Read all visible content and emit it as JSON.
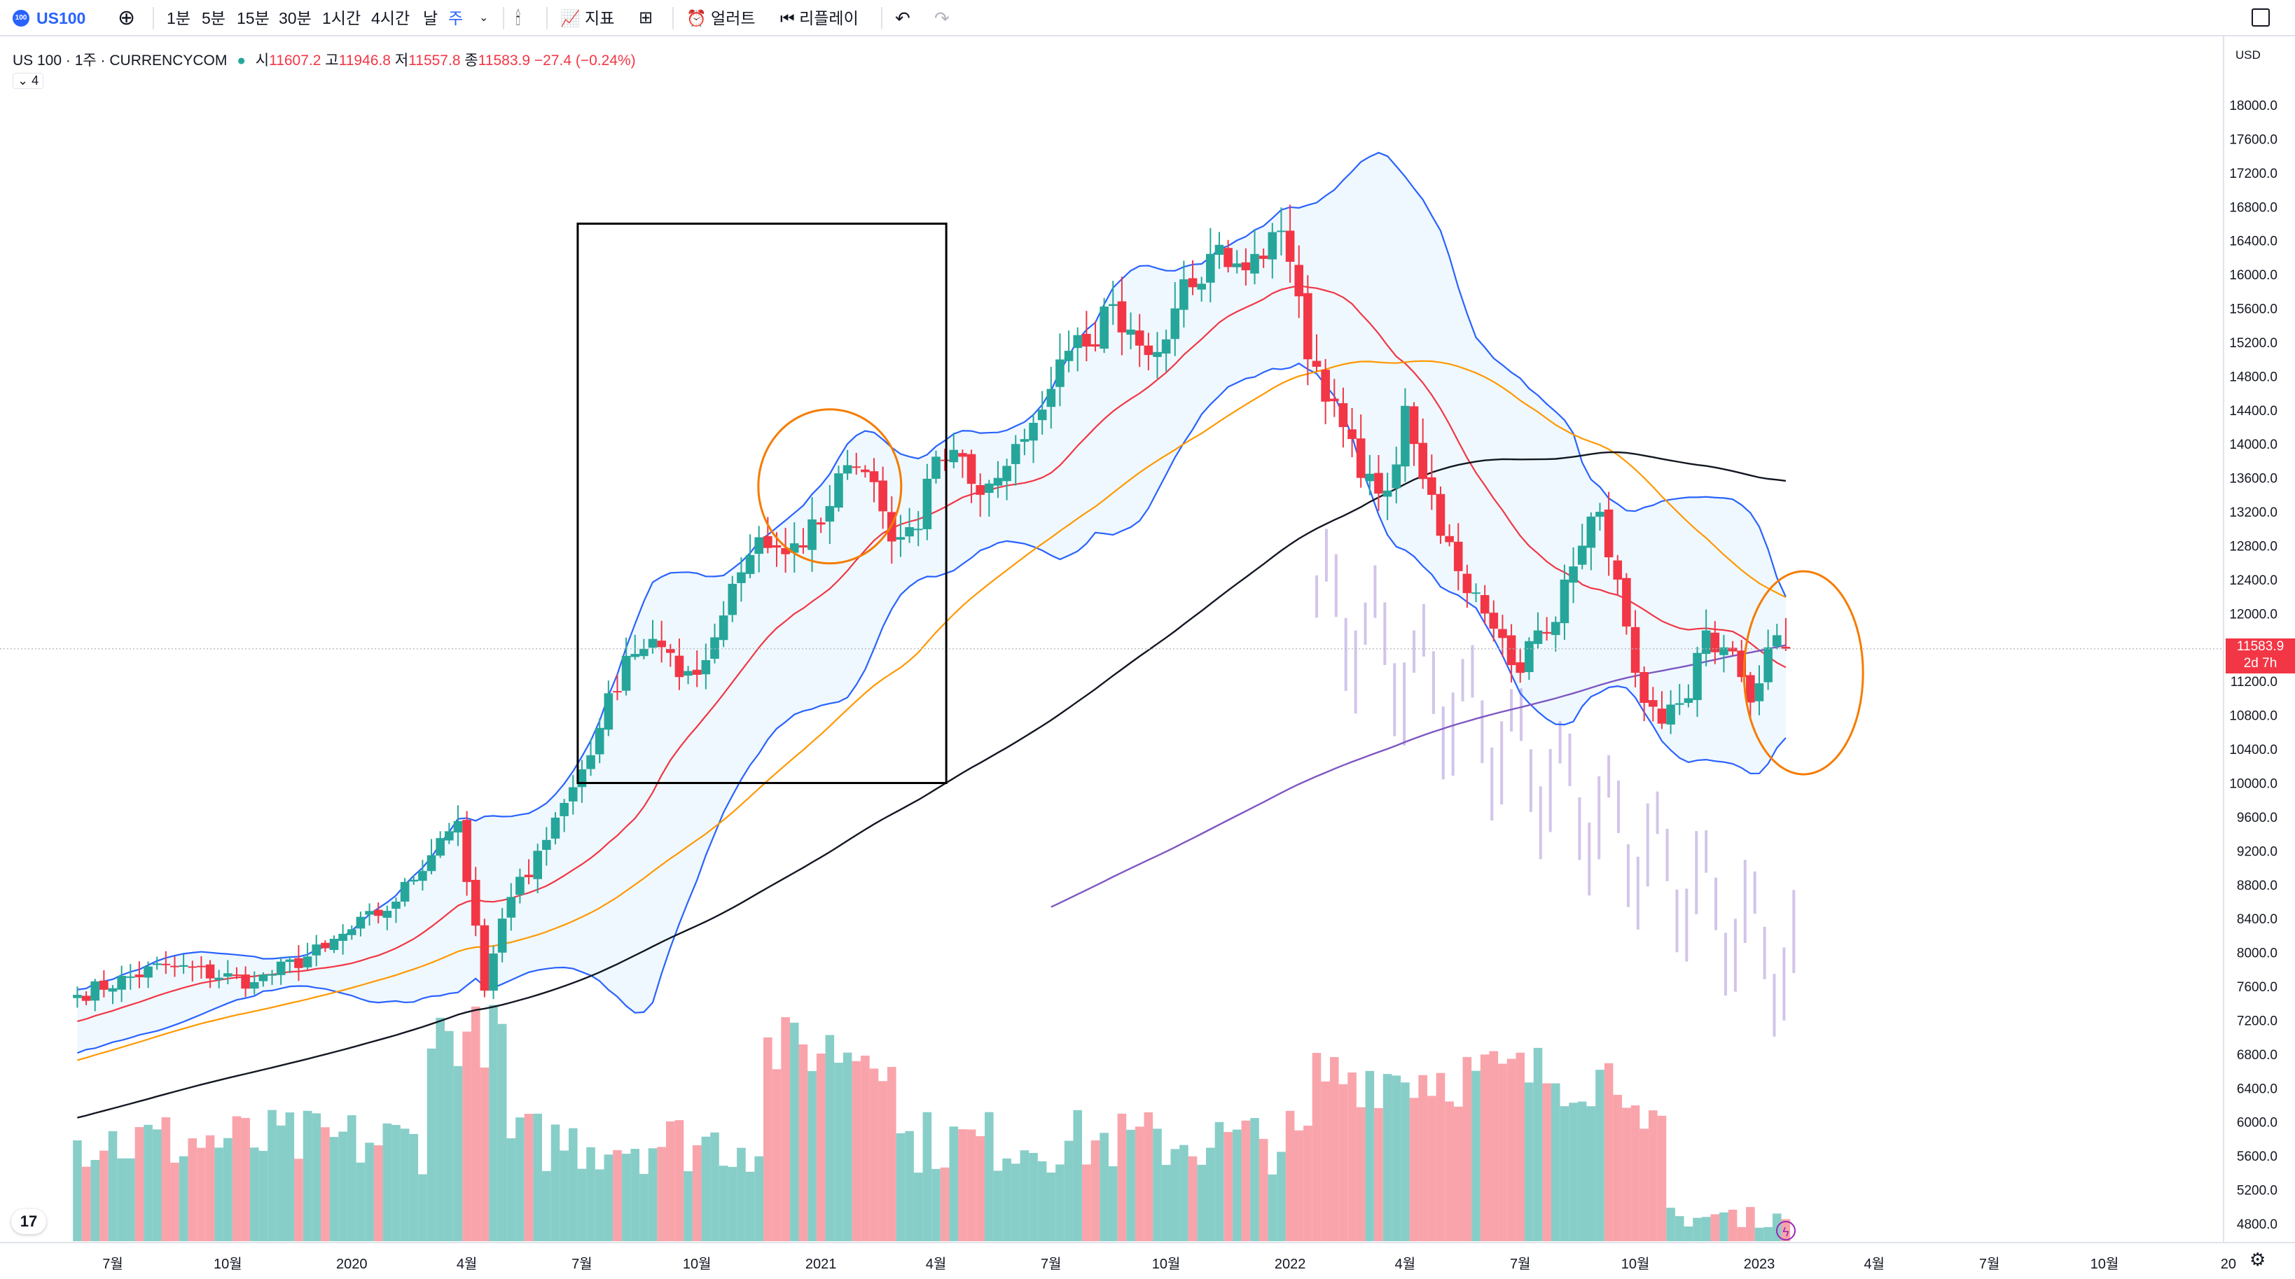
{
  "toolbar": {
    "symbol": "US100",
    "badge": "100",
    "intervals": [
      "1분",
      "5분",
      "15분",
      "30분",
      "1시간",
      "4시간",
      "날",
      "주"
    ],
    "active_interval": "주",
    "indicators_label": "지표",
    "alert_label": "얼러트",
    "replay_label": "리플레이"
  },
  "legend": {
    "title": "US 100 · 1주 · CURRENCYCOM",
    "open_key": "시",
    "open": "11607.2",
    "high_key": "고",
    "high": "11946.8",
    "low_key": "저",
    "low": "11557.8",
    "close_key": "종",
    "close": "11583.9",
    "change": "−27.4 (−0.24%)",
    "collapsed_count": "4"
  },
  "price_axis": {
    "currency": "USD",
    "ticks": [
      "18000.0",
      "17600.0",
      "17200.0",
      "16800.0",
      "16400.0",
      "16000.0",
      "15600.0",
      "15200.0",
      "14800.0",
      "14400.0",
      "14000.0",
      "13600.0",
      "13200.0",
      "12800.0",
      "12400.0",
      "12000.0",
      "11200.0",
      "10800.0",
      "10400.0",
      "10000.0",
      "9600.0",
      "9200.0",
      "8800.0",
      "8400.0",
      "8000.0",
      "7600.0",
      "7200.0",
      "6800.0",
      "6400.0",
      "6000.0",
      "5600.0",
      "5200.0",
      "4800.0"
    ],
    "current_price": "11583.9",
    "countdown": "2d 7h"
  },
  "time_axis": {
    "ticks": [
      "7월",
      "10월",
      "2020",
      "4월",
      "7월",
      "10월",
      "2021",
      "4월",
      "7월",
      "10월",
      "2022",
      "4월",
      "7월",
      "10월",
      "2023",
      "4월",
      "7월",
      "10월",
      "20"
    ]
  },
  "colors": {
    "up": "#26a69a",
    "down": "#f23645",
    "bollinger": "#2962ff",
    "ma20": "#f23645",
    "ma50": "#ff9800",
    "ma100": "#131722",
    "ma200": "#7e57c2",
    "annotation_box": "#000000",
    "annotation_circle": "#f57c00"
  },
  "chart_data": {
    "type": "candlestick",
    "symbol": "US 100",
    "interval": "1주",
    "ylim": [
      4600,
      18300
    ],
    "y_ticks": [
      4800,
      5200,
      5600,
      6000,
      6400,
      6800,
      7200,
      7600,
      8000,
      8400,
      8800,
      9200,
      9600,
      10000,
      10400,
      10800,
      11200,
      12000,
      12400,
      12800,
      13200,
      13600,
      14000,
      14400,
      14800,
      15200,
      15600,
      16000,
      16400,
      16800,
      17200,
      17600,
      18000
    ],
    "x_tick_labels": [
      "7월",
      "10월",
      "2020",
      "4월",
      "7월",
      "10월",
      "2021",
      "4월",
      "7월",
      "10월",
      "2022",
      "4월",
      "7월",
      "10월",
      "2023",
      "4월",
      "7월",
      "10월",
      "20"
    ],
    "x_tick_week_index": [
      4,
      17,
      31,
      44,
      57,
      70,
      84,
      97,
      110,
      123,
      137,
      150,
      163,
      176,
      190,
      203,
      216,
      229,
      243
    ],
    "close_anchors": [
      [
        0,
        7500
      ],
      [
        10,
        7850
      ],
      [
        20,
        7650
      ],
      [
        28,
        8050
      ],
      [
        36,
        8600
      ],
      [
        41,
        9350
      ],
      [
        43,
        9550
      ],
      [
        46,
        7550
      ],
      [
        48,
        8400
      ],
      [
        52,
        9200
      ],
      [
        56,
        9950
      ],
      [
        59,
        10650
      ],
      [
        62,
        11500
      ],
      [
        65,
        11700
      ],
      [
        68,
        11250
      ],
      [
        71,
        11450
      ],
      [
        74,
        12350
      ],
      [
        77,
        12900
      ],
      [
        80,
        12700
      ],
      [
        84,
        13050
      ],
      [
        87,
        13750
      ],
      [
        90,
        13550
      ],
      [
        92,
        12850
      ],
      [
        95,
        13000
      ],
      [
        97,
        13850
      ],
      [
        100,
        13850
      ],
      [
        102,
        13400
      ],
      [
        104,
        13600
      ],
      [
        106,
        14000
      ],
      [
        108,
        14250
      ],
      [
        110,
        14650
      ],
      [
        112,
        15100
      ],
      [
        114,
        15150
      ],
      [
        117,
        15650
      ],
      [
        119,
        15350
      ],
      [
        121,
        15050
      ],
      [
        124,
        15600
      ],
      [
        126,
        15850
      ],
      [
        129,
        16350
      ],
      [
        132,
        16050
      ],
      [
        135,
        16500
      ],
      [
        137,
        16150
      ],
      [
        139,
        15000
      ],
      [
        141,
        14500
      ],
      [
        143,
        14200
      ],
      [
        145,
        13600
      ],
      [
        148,
        13450
      ],
      [
        150,
        14450
      ],
      [
        153,
        13400
      ],
      [
        156,
        12500
      ],
      [
        159,
        12000
      ],
      [
        163,
        11300
      ],
      [
        165,
        11800
      ],
      [
        167,
        11900
      ],
      [
        168,
        12400
      ],
      [
        170,
        12800
      ],
      [
        172,
        13200
      ],
      [
        174,
        12400
      ],
      [
        176,
        11300
      ],
      [
        178,
        10900
      ],
      [
        179,
        10700
      ],
      [
        182,
        11000
      ],
      [
        184,
        11800
      ],
      [
        186,
        11600
      ],
      [
        188,
        11250
      ],
      [
        189,
        10950
      ],
      [
        191,
        11600
      ],
      [
        193,
        11584
      ]
    ],
    "last_candle": {
      "open": 11607.2,
      "high": 11946.8,
      "low": 11557.8,
      "close": 11583.9
    },
    "series": [
      {
        "name": "Bollinger upper",
        "values_from": "close + 2σ (20)"
      },
      {
        "name": "Bollinger lower",
        "values_from": "close − 2σ (20)"
      },
      {
        "name": "MA20"
      },
      {
        "name": "MA50"
      },
      {
        "name": "MA100"
      },
      {
        "name": "MA200"
      }
    ],
    "volume_relative": true,
    "grid": true
  }
}
